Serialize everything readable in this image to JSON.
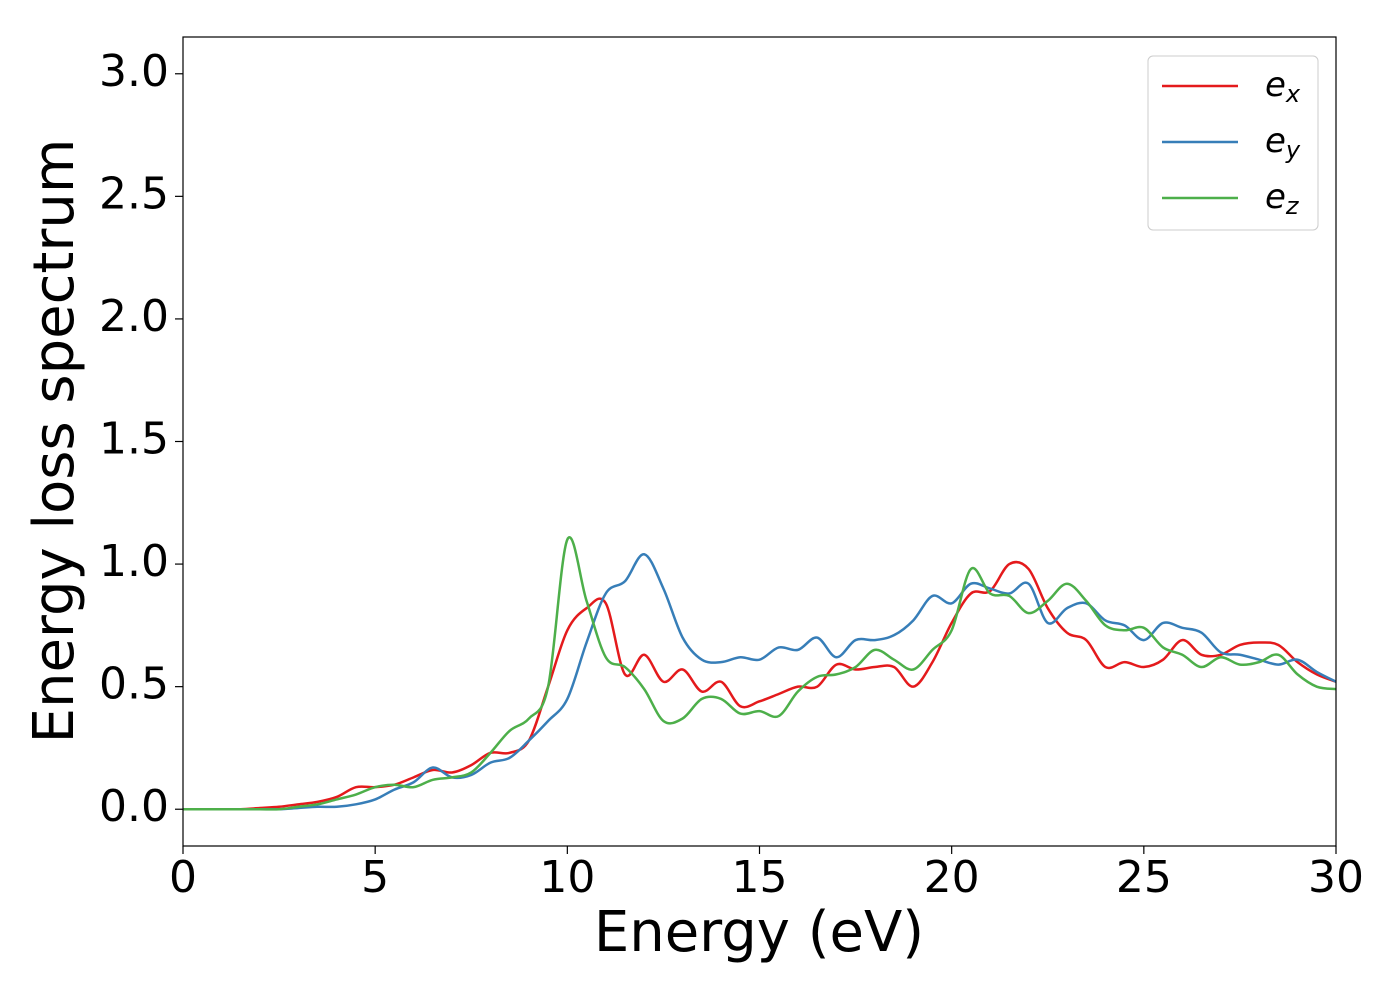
{
  "chart_data": {
    "type": "line",
    "xlabel": "Energy (eV)",
    "ylabel": "Energy loss spectrum",
    "x": [
      0,
      0.5,
      1,
      1.5,
      2,
      2.5,
      3,
      3.5,
      4,
      4.5,
      5,
      5.5,
      6,
      6.5,
      7,
      7.5,
      8,
      8.5,
      9,
      9.5,
      10,
      10.5,
      11,
      11.5,
      12,
      12.5,
      13,
      13.5,
      14,
      14.5,
      15,
      15.5,
      16,
      16.5,
      17,
      17.5,
      18,
      18.5,
      19,
      19.5,
      20,
      20.5,
      21,
      21.5,
      22,
      22.5,
      23,
      23.5,
      24,
      24.5,
      25,
      25.5,
      26,
      26.5,
      27,
      27.5,
      28,
      28.5,
      29,
      29.5,
      30
    ],
    "series": [
      {
        "name": "ex",
        "color": "#e41a1c",
        "values": [
          0,
          0,
          0,
          0,
          0.005,
          0.01,
          0.02,
          0.03,
          0.05,
          0.09,
          0.09,
          0.1,
          0.13,
          0.16,
          0.15,
          0.18,
          0.23,
          0.23,
          0.28,
          0.5,
          0.73,
          0.82,
          0.84,
          0.55,
          0.63,
          0.52,
          0.57,
          0.48,
          0.52,
          0.42,
          0.44,
          0.47,
          0.5,
          0.5,
          0.59,
          0.57,
          0.58,
          0.58,
          0.5,
          0.6,
          0.76,
          0.88,
          0.89,
          1.0,
          0.98,
          0.82,
          0.72,
          0.69,
          0.58,
          0.6,
          0.58,
          0.61,
          0.69,
          0.63,
          0.63,
          0.67,
          0.68,
          0.67,
          0.6,
          0.55,
          0.52
        ]
      },
      {
        "name": "ey",
        "color": "#377eb8",
        "values": [
          0,
          0,
          0,
          0,
          0,
          0,
          0.005,
          0.01,
          0.01,
          0.02,
          0.04,
          0.08,
          0.11,
          0.17,
          0.13,
          0.14,
          0.19,
          0.21,
          0.28,
          0.36,
          0.45,
          0.68,
          0.88,
          0.93,
          1.04,
          0.9,
          0.7,
          0.61,
          0.6,
          0.62,
          0.61,
          0.66,
          0.65,
          0.7,
          0.62,
          0.69,
          0.69,
          0.71,
          0.77,
          0.87,
          0.84,
          0.92,
          0.9,
          0.88,
          0.92,
          0.76,
          0.82,
          0.84,
          0.77,
          0.75,
          0.69,
          0.76,
          0.74,
          0.72,
          0.64,
          0.63,
          0.61,
          0.59,
          0.61,
          0.56,
          0.52
        ]
      },
      {
        "name": "ez",
        "color": "#4daf4a",
        "values": [
          0,
          0,
          0,
          0,
          0,
          0,
          0.01,
          0.02,
          0.04,
          0.06,
          0.09,
          0.1,
          0.09,
          0.12,
          0.13,
          0.15,
          0.23,
          0.32,
          0.37,
          0.5,
          1.1,
          0.85,
          0.62,
          0.58,
          0.49,
          0.36,
          0.37,
          0.45,
          0.45,
          0.39,
          0.4,
          0.38,
          0.48,
          0.54,
          0.55,
          0.58,
          0.65,
          0.61,
          0.57,
          0.65,
          0.73,
          0.98,
          0.88,
          0.87,
          0.8,
          0.85,
          0.92,
          0.85,
          0.75,
          0.73,
          0.74,
          0.66,
          0.63,
          0.58,
          0.62,
          0.59,
          0.6,
          0.63,
          0.55,
          0.5,
          0.49
        ]
      }
    ],
    "xlim": [
      0,
      30
    ],
    "xticks": [
      0,
      5,
      10,
      15,
      20,
      25,
      30
    ],
    "ylim": [
      -0.15,
      3.15
    ],
    "yticks": [
      {
        "value": 0,
        "label": "0.0"
      },
      0.5,
      {
        "value": 1,
        "label": "1.0"
      },
      1.5,
      {
        "value": 2,
        "label": "2.0"
      },
      2.5,
      {
        "value": 3,
        "label": "3.0"
      }
    ],
    "legend": "upper right",
    "grid": false
  }
}
